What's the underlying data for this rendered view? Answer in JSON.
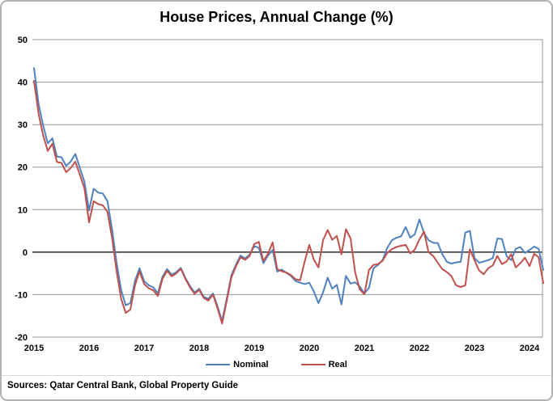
{
  "title": "House Prices, Annual Change (%)",
  "source_note": "Sources: Qatar Central Bank, Global Property Guide",
  "legend": {
    "items": [
      {
        "label": "Nominal",
        "color": "#4F81BD"
      },
      {
        "label": "Real",
        "color": "#C0504D"
      }
    ]
  },
  "colors": {
    "nominal": "#4F81BD",
    "real": "#C0504D",
    "gridline": "#969696",
    "zero_line": "#000000",
    "plot_border": "#969696"
  },
  "chart_data": {
    "type": "line",
    "title": "House Prices, Annual Change (%)",
    "xlabel": "",
    "ylabel": "",
    "x_start_year": 2015,
    "x_frequency": "monthly",
    "x_tick_labels": [
      "2015",
      "2016",
      "2017",
      "2018",
      "2019",
      "2020",
      "2021",
      "2022",
      "2023",
      "2024"
    ],
    "x_tick_every": 12,
    "y_ticks": [
      50,
      40,
      30,
      20,
      10,
      0,
      -10,
      -20
    ],
    "ylim": [
      -20,
      50
    ],
    "grid": true,
    "legend_position": "bottom",
    "series": [
      {
        "name": "Nominal",
        "color": "#4F81BD",
        "values": [
          43.3,
          34.8,
          29.8,
          25.6,
          26.8,
          22.5,
          22.3,
          20.3,
          21.3,
          23.1,
          19.8,
          16.5,
          9.8,
          14.9,
          14.0,
          13.8,
          12.0,
          5.5,
          -2.5,
          -9.0,
          -12.5,
          -12.0,
          -6.8,
          -3.8,
          -6.8,
          -7.8,
          -8.3,
          -9.7,
          -5.8,
          -4.0,
          -5.3,
          -4.7,
          -3.7,
          -6.1,
          -8.0,
          -9.5,
          -8.6,
          -10.5,
          -11.0,
          -9.7,
          -12.8,
          -16.2,
          -11.0,
          -5.5,
          -3.0,
          -0.8,
          -1.5,
          -0.6,
          1.4,
          1.0,
          -2.6,
          -0.8,
          0.5,
          -4.6,
          -4.1,
          -4.9,
          -5.6,
          -6.8,
          -7.2,
          -7.5,
          -7.2,
          -9.3,
          -12.0,
          -9.5,
          -6.0,
          -8.6,
          -7.7,
          -12.3,
          -5.6,
          -7.4,
          -7.1,
          -8.1,
          -9.7,
          -8.4,
          -3.8,
          -3.0,
          -1.8,
          1.0,
          2.8,
          3.4,
          3.7,
          5.9,
          3.4,
          4.2,
          7.7,
          4.5,
          2.8,
          2.2,
          2.1,
          -0.5,
          -2.3,
          -2.7,
          -2.4,
          -2.3,
          4.6,
          5.0,
          -1.4,
          -2.5,
          -2.2,
          -1.9,
          -1.4,
          3.2,
          3.1,
          -0.9,
          -1.9,
          0.8,
          1.2,
          -0.2,
          0.5,
          1.3,
          0.8,
          -4.2
        ]
      },
      {
        "name": "Real",
        "color": "#C0504D",
        "values": [
          40.3,
          32.5,
          27.5,
          23.8,
          25.5,
          21.2,
          21.0,
          18.8,
          19.8,
          21.3,
          18.2,
          15.0,
          7.0,
          12.0,
          11.3,
          11.0,
          9.5,
          3.5,
          -4.5,
          -11.0,
          -14.3,
          -13.5,
          -7.8,
          -4.5,
          -7.5,
          -8.5,
          -9.0,
          -10.3,
          -6.3,
          -4.4,
          -5.7,
          -5.0,
          -3.9,
          -6.3,
          -8.3,
          -9.8,
          -8.9,
          -10.8,
          -11.4,
          -10.0,
          -13.2,
          -16.8,
          -11.5,
          -6.0,
          -3.4,
          -1.2,
          -1.8,
          -0.9,
          1.9,
          2.4,
          -2.1,
          -0.4,
          2.3,
          -4.0,
          -4.5,
          -4.8,
          -5.4,
          -6.4,
          -6.6,
          -2.2,
          1.7,
          -1.8,
          -3.6,
          2.8,
          5.2,
          2.9,
          3.8,
          -0.5,
          5.4,
          3.2,
          -4.8,
          -8.8,
          -9.9,
          -4.2,
          -3.0,
          -2.8,
          -2.0,
          -0.2,
          0.7,
          1.2,
          1.5,
          1.7,
          -0.3,
          0.6,
          3.0,
          4.8,
          0.0,
          -0.9,
          -2.5,
          -4.0,
          -4.7,
          -5.7,
          -7.8,
          -8.2,
          -7.8,
          0.7,
          -1.9,
          -4.3,
          -5.2,
          -3.8,
          -3.1,
          -0.9,
          -2.8,
          -2.2,
          -0.5,
          -3.6,
          -2.6,
          -1.3,
          -3.3,
          -0.4,
          -1.2,
          -7.3
        ]
      }
    ]
  }
}
